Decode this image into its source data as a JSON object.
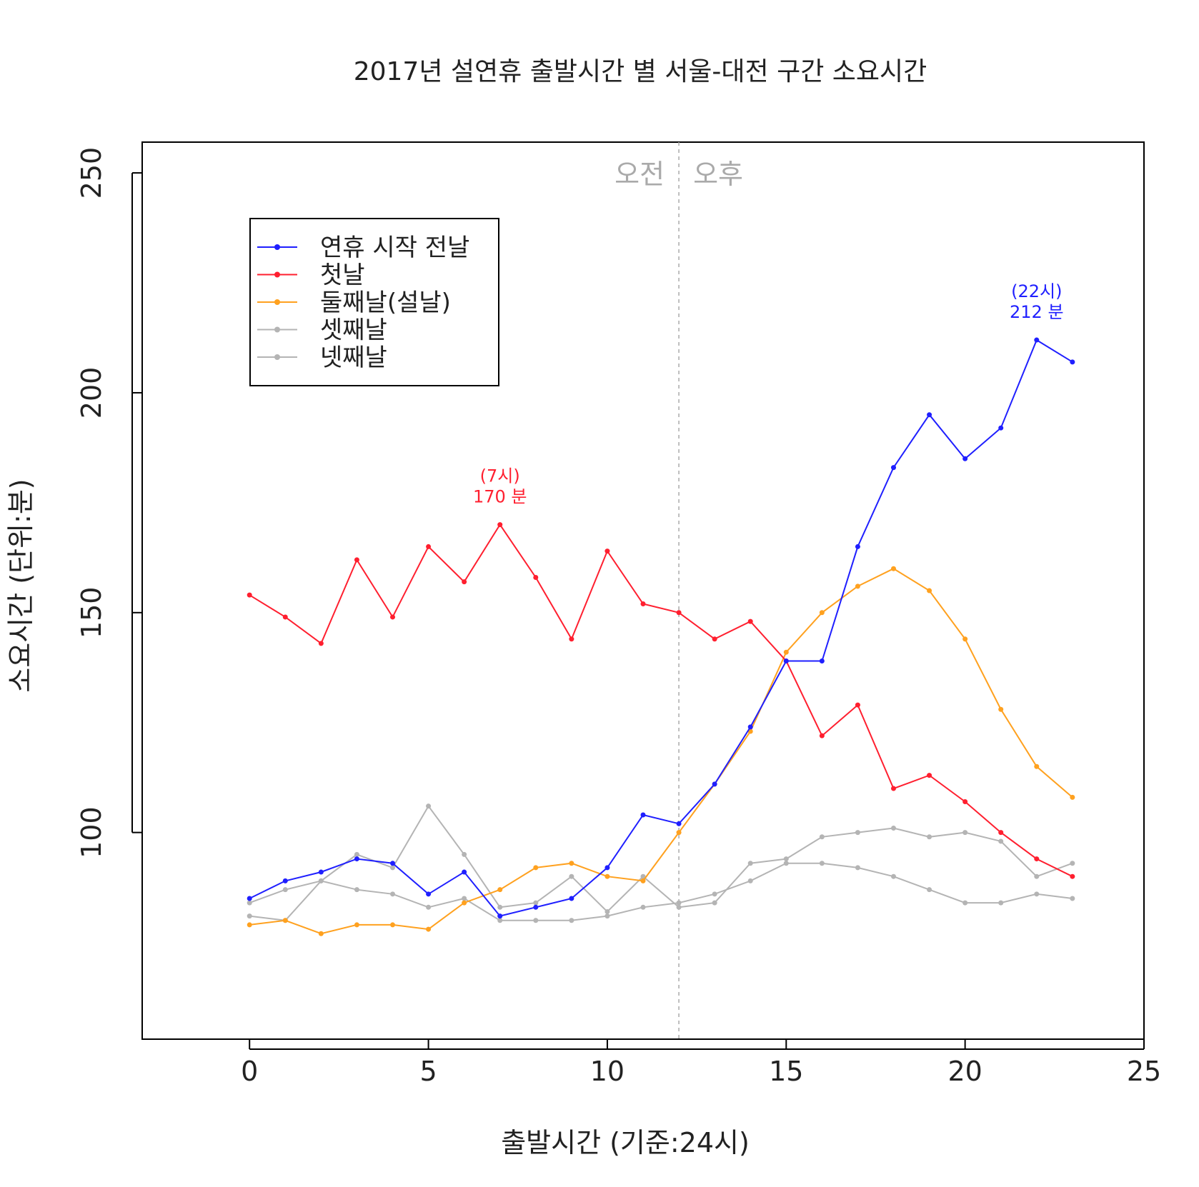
{
  "chart_data": {
    "type": "line",
    "title": "2017년 설연휴 출발시간 별 서울-대전 구간 소요시간",
    "xlabel": "출발시간 (기준:24시)",
    "ylabel": "소요시간 (단위:분)",
    "xlim": [
      -3,
      25
    ],
    "ylim": [
      53,
      257
    ],
    "x_ticks": [
      0,
      5,
      10,
      15,
      20,
      25
    ],
    "y_ticks": [
      100,
      150,
      200,
      250
    ],
    "grid": false,
    "legend_position": "top-left",
    "x": [
      0,
      1,
      2,
      3,
      4,
      5,
      6,
      7,
      8,
      9,
      10,
      11,
      12,
      13,
      14,
      15,
      16,
      17,
      18,
      19,
      20,
      21,
      22,
      23
    ],
    "series": [
      {
        "name": "연휴 시작 전날",
        "color": "#1f1fff",
        "values": [
          85,
          89,
          91,
          94,
          93,
          86,
          91,
          81,
          83,
          85,
          92,
          104,
          102,
          111,
          124,
          139,
          139,
          165,
          183,
          195,
          185,
          192,
          212,
          207
        ]
      },
      {
        "name": "첫날",
        "color": "#ff1f2f",
        "values": [
          154,
          149,
          143,
          162,
          149,
          165,
          157,
          170,
          158,
          144,
          164,
          152,
          150,
          144,
          148,
          139,
          122,
          129,
          110,
          113,
          107,
          100,
          94,
          90
        ]
      },
      {
        "name": "둘째날(설날)",
        "color": "#ffa11f",
        "values": [
          79,
          80,
          77,
          79,
          79,
          78,
          84,
          87,
          92,
          93,
          90,
          89,
          100,
          111,
          123,
          141,
          150,
          156,
          160,
          155,
          144,
          128,
          115,
          108
        ]
      },
      {
        "name": "셋째날",
        "color": "#b4b4b4",
        "values": [
          81,
          80,
          89,
          95,
          92,
          106,
          95,
          83,
          84,
          90,
          82,
          90,
          83,
          84,
          93,
          94,
          99,
          100,
          101,
          99,
          100,
          98,
          90,
          93
        ]
      },
      {
        "name": "넷째날",
        "color": "#b4b4b4",
        "values": [
          84,
          87,
          89,
          87,
          86,
          83,
          85,
          80,
          80,
          80,
          81,
          83,
          84,
          86,
          89,
          93,
          93,
          92,
          90,
          87,
          84,
          84,
          86,
          85
        ]
      }
    ],
    "divider": {
      "x": 12,
      "color": "#aaaaaa",
      "left_label": "오전",
      "right_label": "오후"
    },
    "annotations": [
      {
        "x": 7,
        "y": 170,
        "line1": "(7시)",
        "line2": "170 분",
        "color": "#ff1f2f"
      },
      {
        "x": 22,
        "y": 212,
        "line1": "(22시)",
        "line2": "212 분",
        "color": "#1f1fff"
      }
    ]
  }
}
